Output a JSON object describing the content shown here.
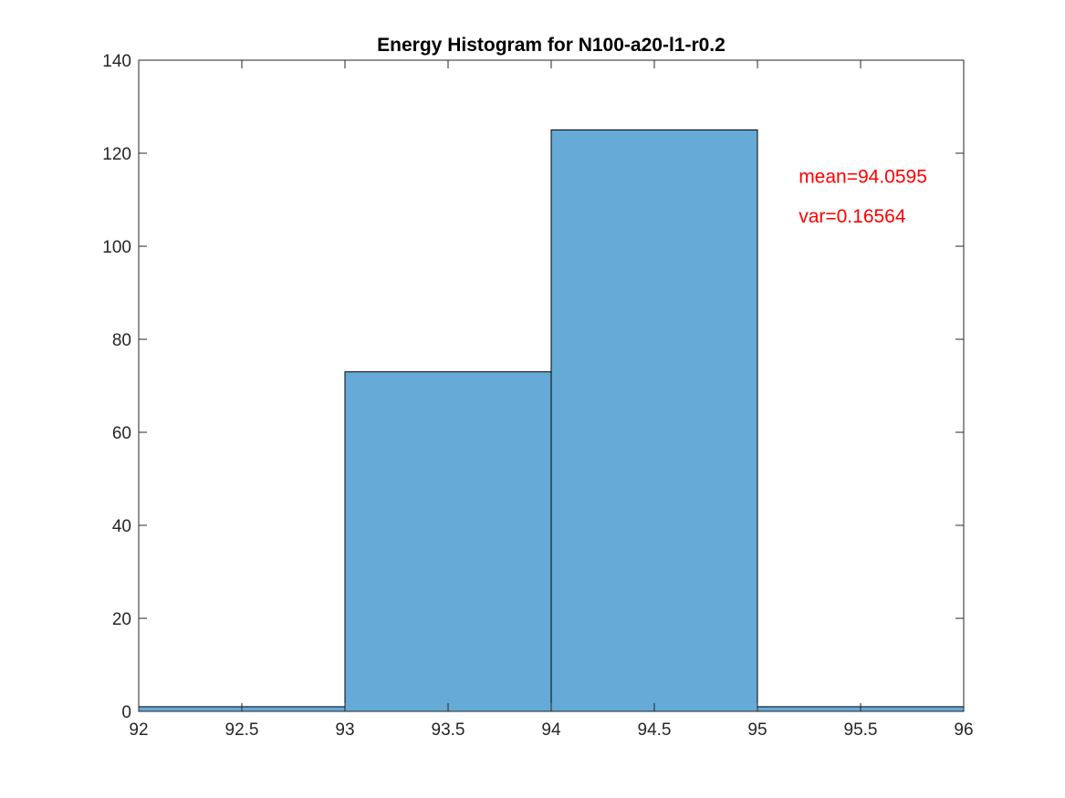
{
  "chart_data": {
    "type": "bar",
    "title": "Energy Histogram for N100-a20-l1-r0.2",
    "xlabel": "",
    "ylabel": "",
    "xlim": [
      92,
      96
    ],
    "ylim": [
      0,
      140
    ],
    "x_ticks": [
      92,
      92.5,
      93,
      93.5,
      94,
      94.5,
      95,
      95.5,
      96
    ],
    "y_ticks": [
      0,
      20,
      40,
      60,
      80,
      100,
      120,
      140
    ],
    "bins": [
      {
        "x0": 92,
        "x1": 93,
        "count": 1
      },
      {
        "x0": 93,
        "x1": 94,
        "count": 73
      },
      {
        "x0": 94,
        "x1": 95,
        "count": 125
      },
      {
        "x0": 95,
        "x1": 96,
        "count": 1
      }
    ],
    "bar_color": "#66aad7",
    "annotation_color": "#ff0000",
    "grid": false,
    "annotations": [
      {
        "text": "mean=94.0595",
        "x": 95.2,
        "y": 115
      },
      {
        "text": "var=0.16564",
        "x": 95.2,
        "y": 106.5
      }
    ]
  }
}
